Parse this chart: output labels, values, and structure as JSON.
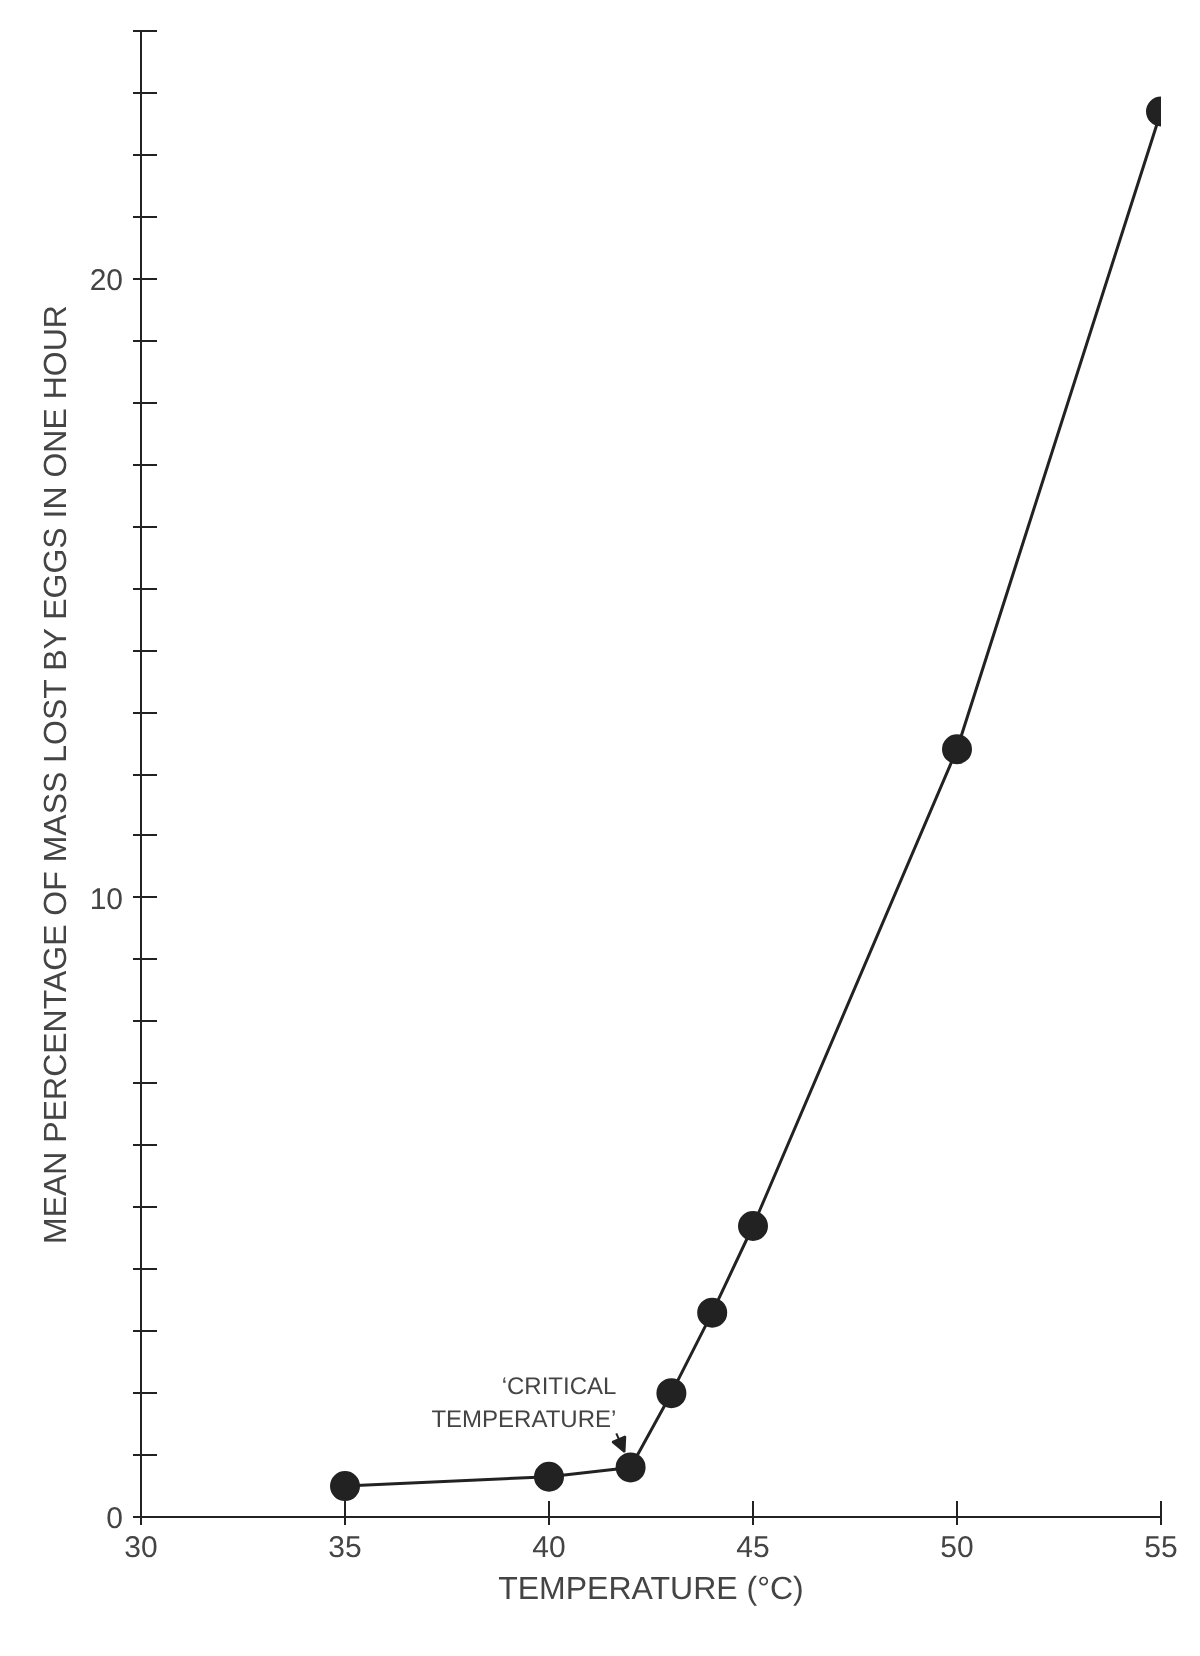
{
  "chart_data": {
    "type": "line",
    "xlabel": "TEMPERATURE (°C)",
    "ylabel": "MEAN PERCENTAGE OF MASS LOST BY EGGS IN ONE HOUR",
    "x": [
      35,
      40,
      42,
      43,
      44,
      45,
      50,
      55
    ],
    "series": [
      {
        "color": "#222222",
        "values": [
          0.5,
          0.65,
          0.8,
          2.0,
          3.3,
          4.7,
          12.4,
          22.7
        ]
      }
    ],
    "xlim": [
      30,
      55
    ],
    "xticks": [
      30,
      35,
      40,
      45,
      50,
      55
    ],
    "ylim": [
      0,
      24
    ],
    "yticks": [
      0,
      {
        "value": 1,
        "label": null
      },
      {
        "value": 2,
        "label": null
      },
      {
        "value": 3,
        "label": null
      },
      {
        "value": 4,
        "label": null
      },
      {
        "value": 5,
        "label": null
      },
      {
        "value": 6,
        "label": null
      },
      {
        "value": 7,
        "label": null
      },
      {
        "value": 8,
        "label": null
      },
      {
        "value": 9,
        "label": null
      },
      10,
      {
        "value": 11,
        "label": null
      },
      {
        "value": 12,
        "label": null
      },
      {
        "value": 13,
        "label": null
      },
      {
        "value": 14,
        "label": null
      },
      {
        "value": 15,
        "label": null
      },
      {
        "value": 16,
        "label": null
      },
      {
        "value": 17,
        "label": null
      },
      {
        "value": 18,
        "label": null
      },
      {
        "value": 19,
        "label": null
      },
      20,
      {
        "value": 21,
        "label": null
      },
      {
        "value": 22,
        "label": null
      },
      {
        "value": 23,
        "label": null
      },
      {
        "value": 24,
        "label": null
      }
    ],
    "annotations": [
      {
        "text": "‘CRITICAL\nTEMPERATURE’",
        "x": 42,
        "y": 0.8
      }
    ],
    "marker": "circle",
    "line_style": "solid",
    "grid": false
  }
}
